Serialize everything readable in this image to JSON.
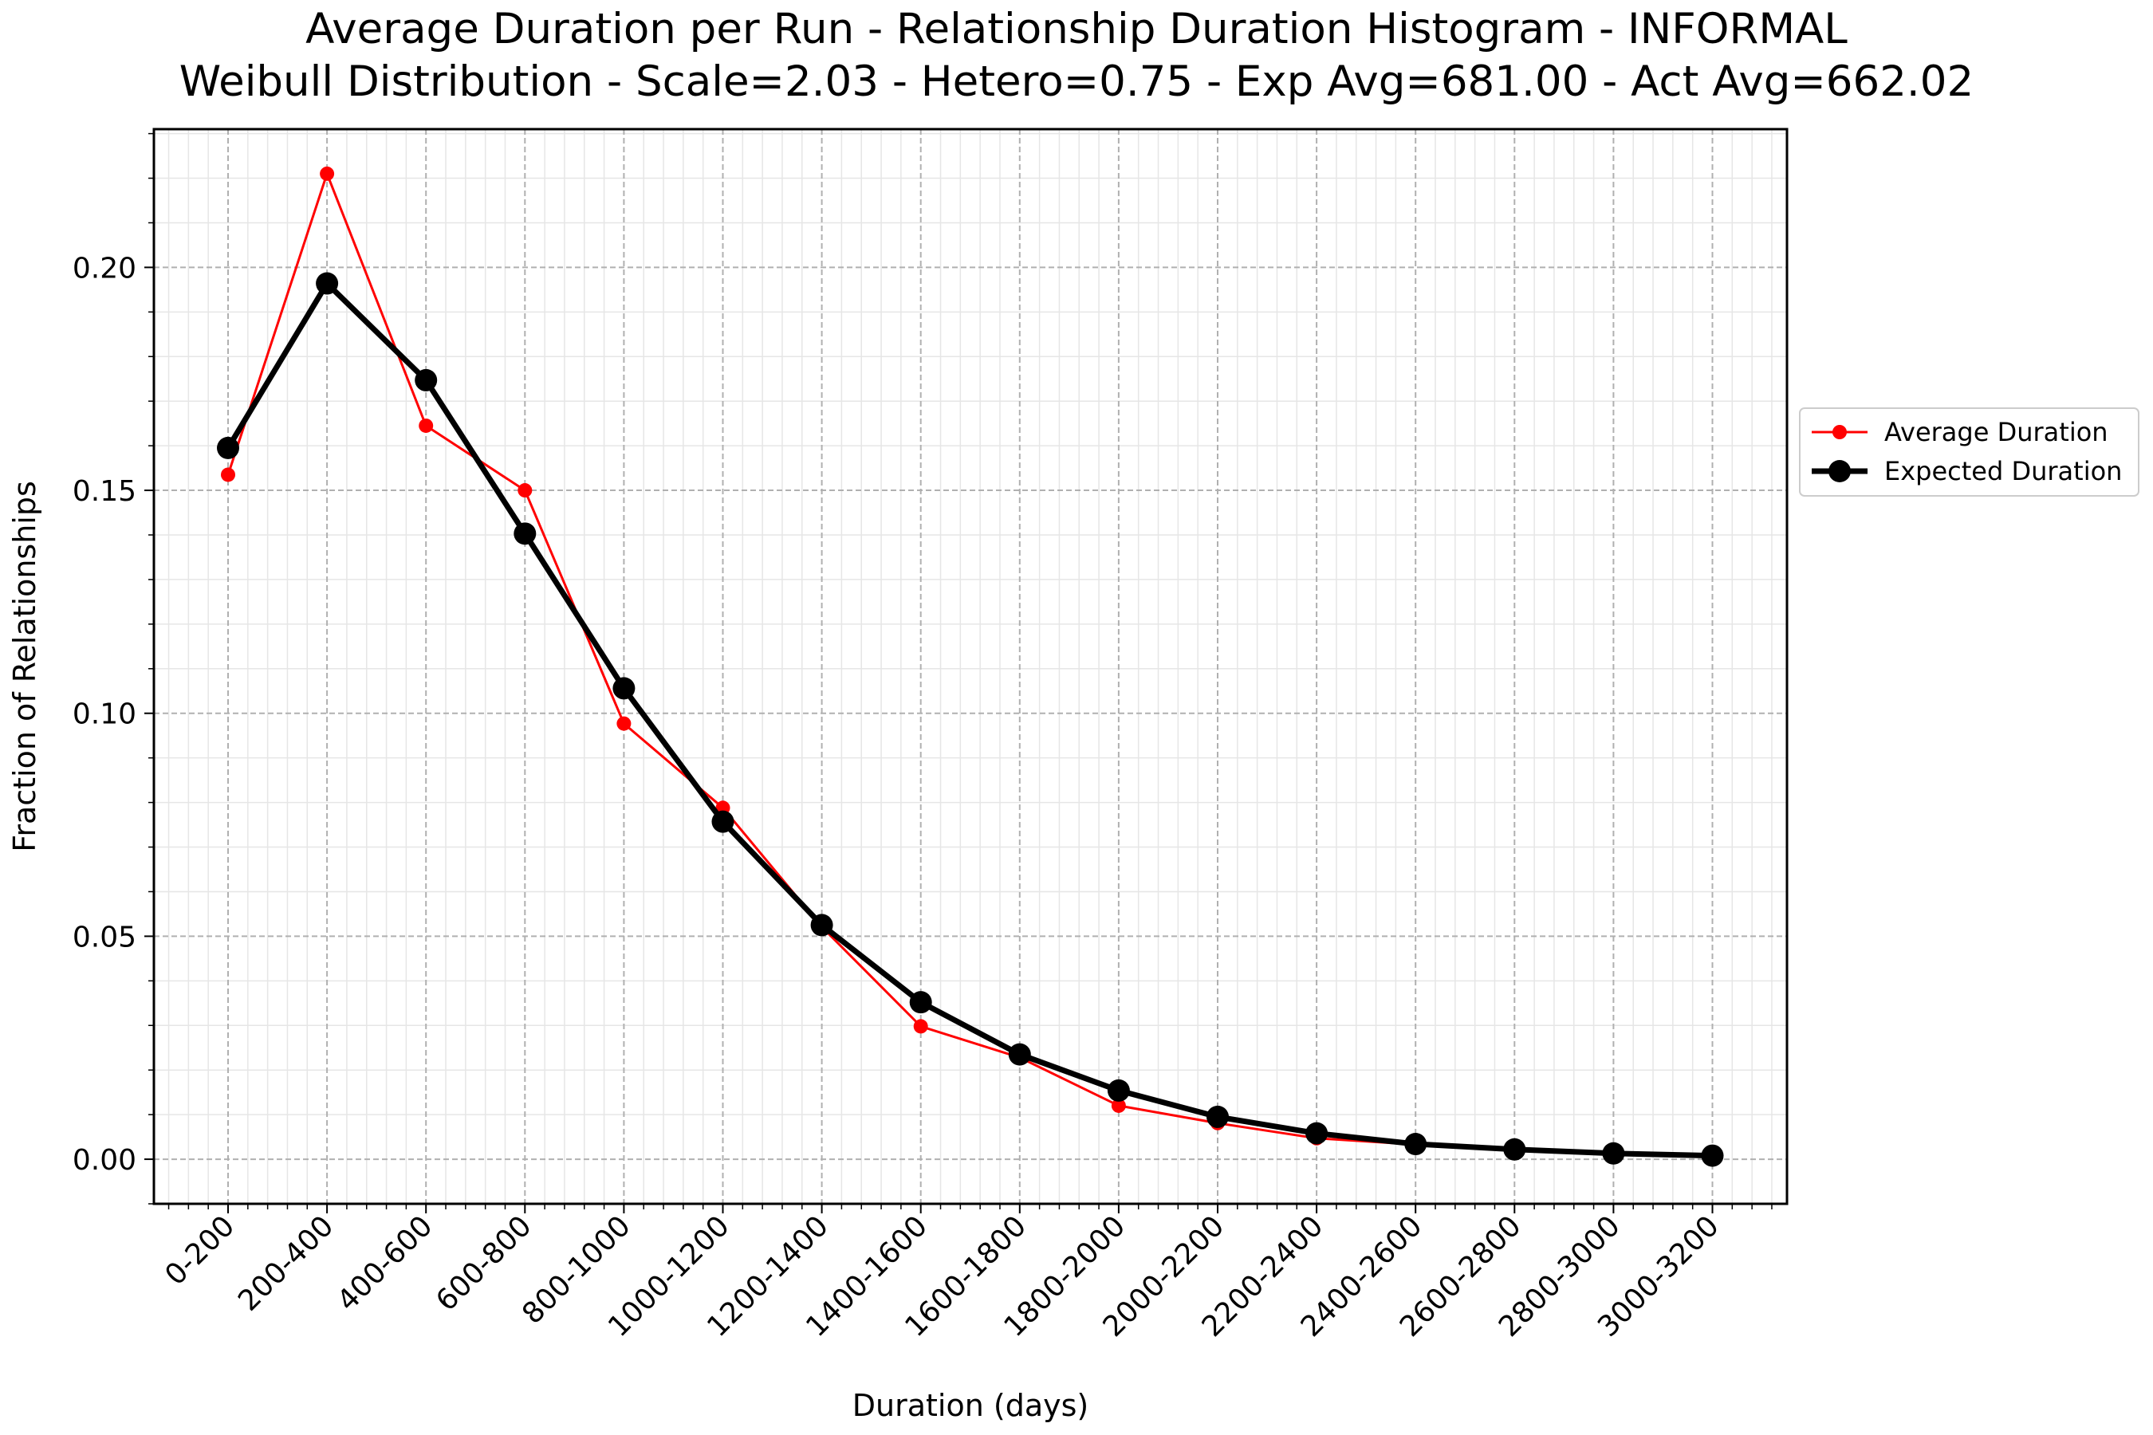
{
  "chart_data": {
    "type": "line",
    "title": "Average Duration per Run - Relationship Duration Histogram - INFORMAL",
    "subtitle": "Weibull Distribution - Scale=2.03 - Hetero=0.75 - Exp Avg=681.00 - Act Avg=662.02",
    "xlabel": "Duration (days)",
    "ylabel": "Fraction of Relationships",
    "categories": [
      "0-200",
      "200-400",
      "400-600",
      "600-800",
      "800-1000",
      "1000-1200",
      "1200-1400",
      "1400-1600",
      "1600-1800",
      "1800-2000",
      "2000-2200",
      "2200-2400",
      "2400-2600",
      "2600-2800",
      "2800-3000",
      "3000-3200"
    ],
    "ylim": [
      -0.01,
      0.231
    ],
    "yticks": [
      "0.00",
      "0.05",
      "0.10",
      "0.15",
      "0.20"
    ],
    "ytick_values": [
      0.0,
      0.05,
      0.1,
      0.15,
      0.2
    ],
    "grid": true,
    "legend_position": "outside-right",
    "series": [
      {
        "name": "Average Duration",
        "color": "#ff0000",
        "values": [
          0.1535,
          0.221,
          0.1645,
          0.15,
          0.0977,
          0.0788,
          0.0521,
          0.0298,
          0.0228,
          0.012,
          0.0081,
          0.0047,
          0.0033,
          0.0022,
          0.0014,
          0.0009
        ]
      },
      {
        "name": "Expected Duration",
        "color": "#000000",
        "values": [
          0.1595,
          0.1964,
          0.1747,
          0.1403,
          0.1056,
          0.0757,
          0.0525,
          0.0352,
          0.0235,
          0.0154,
          0.0095,
          0.0058,
          0.0034,
          0.0022,
          0.0013,
          0.0008
        ]
      }
    ]
  }
}
